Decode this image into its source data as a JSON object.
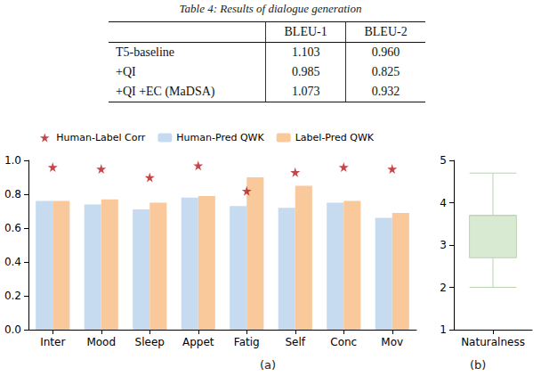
{
  "caption": "Table 4: Results of dialogue generation",
  "table": {
    "header": [
      "",
      "BLEU-1",
      "BLEU-2"
    ],
    "rows": [
      [
        "T5-baseline",
        "1.103",
        "0.960"
      ],
      [
        "+QI",
        "0.985",
        "0.825"
      ],
      [
        "+QI +EC (MaDSA)",
        "1.073",
        "0.932"
      ]
    ]
  },
  "subcaptions": [
    "(a)",
    "(b)"
  ],
  "chart_data": [
    {
      "type": "bar",
      "categories": [
        "Inter",
        "Mood",
        "Sleep",
        "Appet",
        "Fatig",
        "Self",
        "Conc",
        "Mov"
      ],
      "series": [
        {
          "name": "Human-Label Corr",
          "type": "scatter",
          "marker": "star",
          "color": "#b5181b",
          "values": [
            0.96,
            0.95,
            0.9,
            0.97,
            0.82,
            0.93,
            0.96,
            0.95
          ]
        },
        {
          "name": "Human-Pred QWK",
          "type": "bar",
          "color": "#c6dbef",
          "values": [
            0.76,
            0.74,
            0.71,
            0.78,
            0.73,
            0.72,
            0.75,
            0.66
          ]
        },
        {
          "name": "Label-Pred QWK",
          "type": "bar",
          "color": "#f9c89b",
          "values": [
            0.76,
            0.77,
            0.75,
            0.79,
            0.9,
            0.85,
            0.76,
            0.69
          ]
        }
      ],
      "ylim": [
        0,
        1
      ],
      "yticks": [
        {
          "value": 0,
          "label": "0.0"
        },
        0.2,
        0.4,
        0.6,
        0.8,
        {
          "value": 1,
          "label": "1.0"
        }
      ],
      "grid": false,
      "legend": "top"
    },
    {
      "type": "box",
      "categories": [
        "Naturalness"
      ],
      "series": [
        {
          "color": "#d9ead3",
          "stats": [
            [
              2.0,
              2.7,
              3.7,
              3.7,
              4.7
            ]
          ]
        }
      ],
      "ylim": [
        1,
        5
      ],
      "yticks": [
        1,
        2,
        3,
        4,
        5
      ],
      "grid": false
    }
  ]
}
